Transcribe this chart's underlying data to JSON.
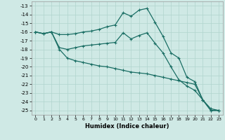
{
  "xlabel": "Humidex (Indice chaleur)",
  "xlim": [
    -0.5,
    23.5
  ],
  "ylim": [
    -25.5,
    -12.5
  ],
  "yticks": [
    -25,
    -24,
    -23,
    -22,
    -21,
    -20,
    -19,
    -18,
    -17,
    -16,
    -15,
    -14,
    -13
  ],
  "xticks": [
    0,
    1,
    2,
    3,
    4,
    5,
    6,
    7,
    8,
    9,
    10,
    11,
    12,
    13,
    14,
    15,
    16,
    17,
    18,
    19,
    20,
    21,
    22,
    23
  ],
  "bg_color": "#cfe9e5",
  "grid_color": "#b0d4ce",
  "line_color": "#1a6e64",
  "line_width": 0.9,
  "marker": "+",
  "marker_size": 3.5,
  "marker_lw": 0.8,
  "series": [
    {
      "x": [
        0,
        1,
        2,
        3,
        4,
        5,
        6,
        7,
        8,
        9,
        10,
        11,
        12,
        13,
        14,
        15,
        16,
        17,
        18,
        19,
        20,
        21,
        22,
        23
      ],
      "y": [
        -16.0,
        -16.2,
        -16.0,
        -16.3,
        -16.3,
        -16.2,
        -16.0,
        -15.9,
        -15.7,
        -15.4,
        -15.2,
        -13.8,
        -14.2,
        -13.5,
        -13.3,
        -14.9,
        -16.5,
        -18.4,
        -19.0,
        -21.2,
        -21.7,
        -23.8,
        -25.0,
        -25.0
      ]
    },
    {
      "x": [
        0,
        1,
        2,
        3,
        4,
        5,
        6,
        7,
        8,
        9,
        10,
        11,
        12,
        13,
        14,
        15,
        16,
        17,
        18,
        19,
        20,
        21,
        22,
        23
      ],
      "y": [
        -16.0,
        -16.2,
        -16.0,
        -17.8,
        -18.0,
        -17.8,
        -17.6,
        -17.5,
        -17.4,
        -17.3,
        -17.2,
        -16.1,
        -16.8,
        -16.4,
        -16.1,
        -17.3,
        -18.4,
        -20.0,
        -21.5,
        -22.2,
        -22.7,
        -23.8,
        -25.0,
        -25.0
      ]
    },
    {
      "x": [
        0,
        1,
        2,
        3,
        4,
        5,
        6,
        7,
        8,
        9,
        10,
        11,
        12,
        13,
        14,
        15,
        16,
        17,
        18,
        19,
        20,
        21,
        22,
        23
      ],
      "y": [
        -16.0,
        -16.2,
        -16.0,
        -18.0,
        -19.0,
        -19.3,
        -19.5,
        -19.7,
        -19.9,
        -20.0,
        -20.2,
        -20.4,
        -20.6,
        -20.7,
        -20.8,
        -21.0,
        -21.2,
        -21.4,
        -21.6,
        -21.8,
        -22.0,
        -23.8,
        -24.8,
        -25.0
      ]
    }
  ]
}
